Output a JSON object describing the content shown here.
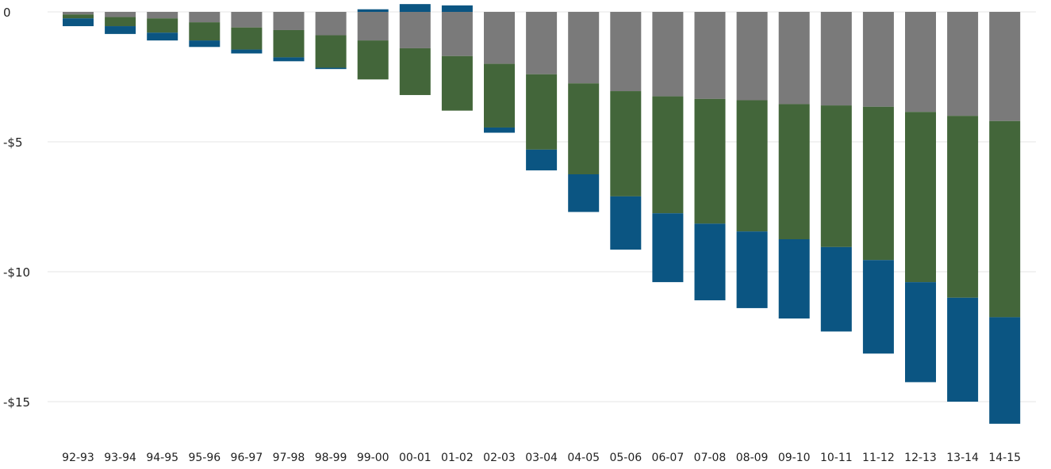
{
  "chart_data": {
    "type": "bar",
    "stacked": true,
    "categories": [
      "92-93",
      "93-94",
      "94-95",
      "95-96",
      "96-97",
      "97-98",
      "98-99",
      "99-00",
      "00-01",
      "01-02",
      "02-03",
      "03-04",
      "04-05",
      "05-06",
      "06-07",
      "07-08",
      "08-09",
      "09-10",
      "10-11",
      "11-12",
      "12-13",
      "13-14",
      "14-15"
    ],
    "series": [
      {
        "color": "#7a7a7a",
        "values": [
          -0.1,
          -0.2,
          -0.25,
          -0.4,
          -0.6,
          -0.7,
          -0.9,
          -1.1,
          -1.4,
          -1.7,
          -2.0,
          -2.4,
          -2.75,
          -3.05,
          -3.25,
          -3.35,
          -3.4,
          -3.55,
          -3.6,
          -3.65,
          -3.85,
          -4.0,
          -4.2
        ]
      },
      {
        "color": "#43663a",
        "values": [
          -0.15,
          -0.35,
          -0.55,
          -0.7,
          -0.85,
          -1.05,
          -1.25,
          -1.5,
          -1.8,
          -2.1,
          -2.45,
          -2.9,
          -3.5,
          -4.05,
          -4.5,
          -4.8,
          -5.05,
          -5.2,
          -5.45,
          -5.9,
          -6.55,
          -7.0,
          -7.55
        ]
      },
      {
        "color": "#0b5582",
        "values": [
          -0.3,
          -0.3,
          -0.3,
          -0.25,
          -0.15,
          -0.15,
          -0.05,
          0.1,
          0.3,
          0.25,
          -0.2,
          -0.8,
          -1.45,
          -2.05,
          -2.65,
          -2.95,
          -2.95,
          -3.05,
          -3.25,
          -3.6,
          -3.85,
          -4.0,
          -4.1
        ]
      }
    ],
    "y_ticks": [
      {
        "value": 0,
        "label": "0"
      },
      {
        "value": -5,
        "label": "-$5"
      },
      {
        "value": -10,
        "label": "-$10"
      },
      {
        "value": -15,
        "label": "-$15"
      }
    ],
    "ylim": [
      -16.3,
      0.4
    ],
    "grid": true,
    "legend": "none"
  }
}
